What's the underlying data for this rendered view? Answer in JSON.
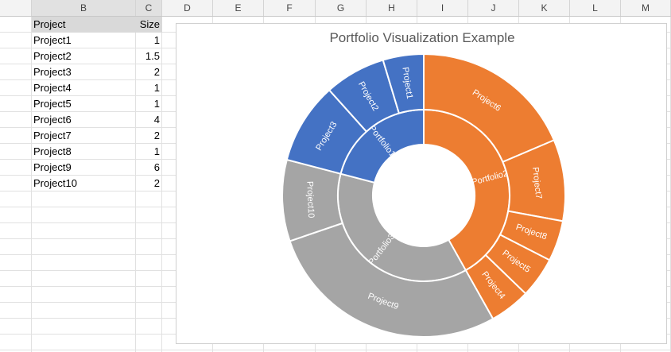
{
  "spreadsheet": {
    "columns": [
      "B",
      "C",
      "D",
      "E",
      "F",
      "G",
      "H",
      "I",
      "J",
      "K",
      "L",
      "M"
    ],
    "selected_columns": [
      "B",
      "C"
    ],
    "table": {
      "headers": [
        "Project",
        "Size"
      ],
      "rows": [
        [
          "Project1",
          "1"
        ],
        [
          "Project2",
          "1.5"
        ],
        [
          "Project3",
          "2"
        ],
        [
          "Project4",
          "1"
        ],
        [
          "Project5",
          "1"
        ],
        [
          "Project6",
          "4"
        ],
        [
          "Project7",
          "2"
        ],
        [
          "Project8",
          "1"
        ],
        [
          "Project9",
          "6"
        ],
        [
          "Project10",
          "2"
        ]
      ]
    }
  },
  "chart_data": {
    "type": "sunburst",
    "title": "Portfolio Visualization Example",
    "colors": {
      "Portfolio1": "#4472c4",
      "Portfolio2": "#ed7d31",
      "Portfolio3": "#a5a5a5"
    },
    "hierarchy": [
      {
        "name": "Portfolio2",
        "children": [
          {
            "name": "Project6",
            "value": 4
          },
          {
            "name": "Project7",
            "value": 2
          },
          {
            "name": "Project8",
            "value": 1
          },
          {
            "name": "Project5",
            "value": 1
          },
          {
            "name": "Project4",
            "value": 1
          }
        ]
      },
      {
        "name": "Portfolio3",
        "children": [
          {
            "name": "Project9",
            "value": 6
          },
          {
            "name": "Project10",
            "value": 2
          }
        ]
      },
      {
        "name": "Portfolio1",
        "children": [
          {
            "name": "Project3",
            "value": 2
          },
          {
            "name": "Project2",
            "value": 1.5
          },
          {
            "name": "Project1",
            "value": 1
          }
        ]
      }
    ]
  }
}
